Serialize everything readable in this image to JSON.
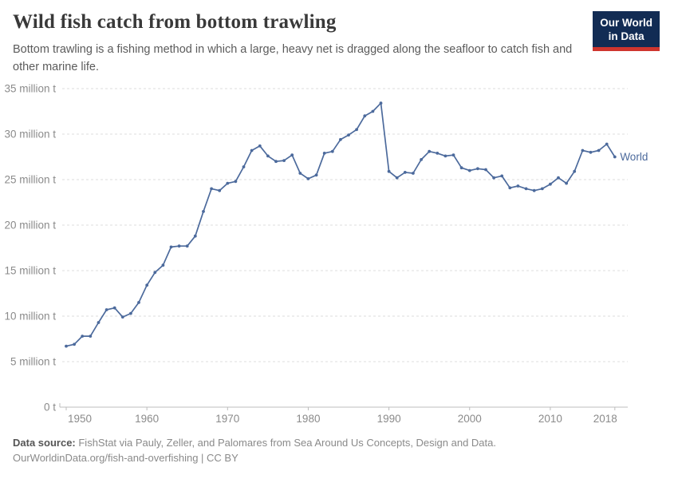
{
  "header": {
    "title": "Wild fish catch from bottom trawling",
    "subtitle": "Bottom trawling is a fishing method in which a large, heavy net is dragged along the seafloor to catch fish and other marine life.",
    "logo": {
      "line1": "Our World",
      "line2": "in Data",
      "bg": "#122c54",
      "accent": "#cf352e"
    }
  },
  "chart_data": {
    "type": "line",
    "title": "Wild fish catch from bottom trawling",
    "xlabel": "",
    "ylabel": "",
    "unit": "million t",
    "xlim": [
      1950,
      2018
    ],
    "ylim": [
      0,
      35
    ],
    "grid": "horizontal dashed",
    "legend_position": "end-of-line label",
    "x_ticks": [
      1950,
      1960,
      1970,
      1980,
      1990,
      2000,
      2010,
      2018
    ],
    "y_ticks": [
      {
        "value": 0,
        "label": "0 t"
      },
      {
        "value": 5,
        "label": "5 million t"
      },
      {
        "value": 10,
        "label": "10 million t"
      },
      {
        "value": 15,
        "label": "15 million t"
      },
      {
        "value": 20,
        "label": "20 million t"
      },
      {
        "value": 25,
        "label": "25 million t"
      },
      {
        "value": 30,
        "label": "30 million t"
      },
      {
        "value": 35,
        "label": "35 million t"
      }
    ],
    "x": [
      1950,
      1951,
      1952,
      1953,
      1954,
      1955,
      1956,
      1957,
      1958,
      1959,
      1960,
      1961,
      1962,
      1963,
      1964,
      1965,
      1966,
      1967,
      1968,
      1969,
      1970,
      1971,
      1972,
      1973,
      1974,
      1975,
      1976,
      1977,
      1978,
      1979,
      1980,
      1981,
      1982,
      1983,
      1984,
      1985,
      1986,
      1987,
      1988,
      1989,
      1990,
      1991,
      1992,
      1993,
      1994,
      1995,
      1996,
      1997,
      1998,
      1999,
      2000,
      2001,
      2002,
      2003,
      2004,
      2005,
      2006,
      2007,
      2008,
      2009,
      2010,
      2011,
      2012,
      2013,
      2014,
      2015,
      2016,
      2017,
      2018
    ],
    "series": [
      {
        "name": "World",
        "color": "#4c6a9c",
        "values": [
          6.7,
          6.9,
          7.8,
          7.8,
          9.3,
          10.7,
          10.9,
          9.9,
          10.3,
          11.5,
          13.4,
          14.8,
          15.6,
          17.6,
          17.7,
          17.7,
          18.8,
          21.5,
          24.0,
          23.8,
          24.6,
          24.8,
          26.4,
          28.2,
          28.7,
          27.6,
          27.0,
          27.1,
          27.7,
          25.7,
          25.1,
          25.5,
          27.9,
          28.1,
          29.4,
          29.9,
          30.5,
          32.0,
          32.5,
          33.4,
          25.9,
          25.2,
          25.8,
          25.7,
          27.2,
          28.1,
          27.9,
          27.6,
          27.7,
          26.3,
          26.0,
          26.2,
          26.1,
          25.2,
          25.4,
          24.1,
          24.3,
          24.0,
          23.8,
          24.0,
          24.5,
          25.2,
          24.6,
          25.9,
          28.2,
          28.0,
          28.2,
          28.9,
          27.5
        ]
      }
    ]
  },
  "footer": {
    "source_label": "Data source:",
    "source_text": " FishStat via Pauly, Zeller, and Palomares from Sea Around Us Concepts, Design and Data.",
    "url_text": "OurWorldinData.org/fish-and-overfishing",
    "license_text": " | CC BY"
  }
}
